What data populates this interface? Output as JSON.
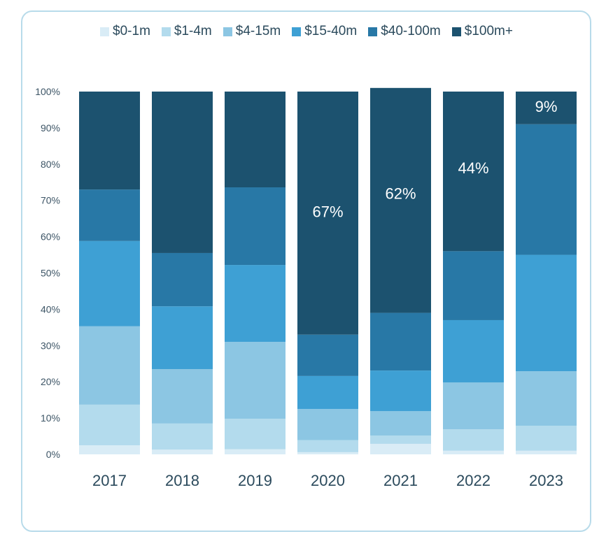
{
  "chart_data": {
    "type": "bar",
    "stacked": true,
    "title": "",
    "xlabel": "",
    "ylabel": "",
    "ylim": [
      0,
      100
    ],
    "yticks": [
      "0%",
      "10%",
      "20%",
      "30%",
      "40%",
      "50%",
      "60%",
      "70%",
      "80%",
      "90%",
      "100%"
    ],
    "categories": [
      "2017",
      "2018",
      "2019",
      "2020",
      "2021",
      "2022",
      "2023"
    ],
    "legend_position": "top",
    "series": [
      {
        "name": "$0-1m",
        "color": "#d9ecf6",
        "values": [
          2.5,
          1.3,
          1.4,
          0.6,
          2.9,
          1.0,
          1.0
        ]
      },
      {
        "name": "$1-4m",
        "color": "#b3dbed",
        "values": [
          11.2,
          7.2,
          8.4,
          3.3,
          2.3,
          5.9,
          6.9
        ]
      },
      {
        "name": "$4-15m",
        "color": "#8cc6e3",
        "values": [
          21.6,
          15.0,
          21.2,
          8.6,
          6.7,
          12.9,
          15.0
        ]
      },
      {
        "name": "$15-40m",
        "color": "#3ea0d4",
        "values": [
          23.5,
          17.3,
          21.2,
          9.1,
          11.2,
          17.2,
          32.1
        ]
      },
      {
        "name": "$40-100m",
        "color": "#2878a6",
        "values": [
          14.2,
          14.7,
          21.4,
          11.4,
          15.9,
          19.0,
          36.0
        ]
      },
      {
        "name": "$100m+",
        "color": "#1c526f",
        "values": [
          27.0,
          44.5,
          26.4,
          67.0,
          62.0,
          44.0,
          9.0
        ]
      }
    ],
    "data_labels": [
      {
        "category": "2020",
        "series": "$100m+",
        "text": "67%"
      },
      {
        "category": "2021",
        "series": "$100m+",
        "text": "62%"
      },
      {
        "category": "2022",
        "series": "$100m+",
        "text": "44%"
      },
      {
        "category": "2023",
        "series": "$100m+",
        "text": "9%"
      }
    ]
  }
}
